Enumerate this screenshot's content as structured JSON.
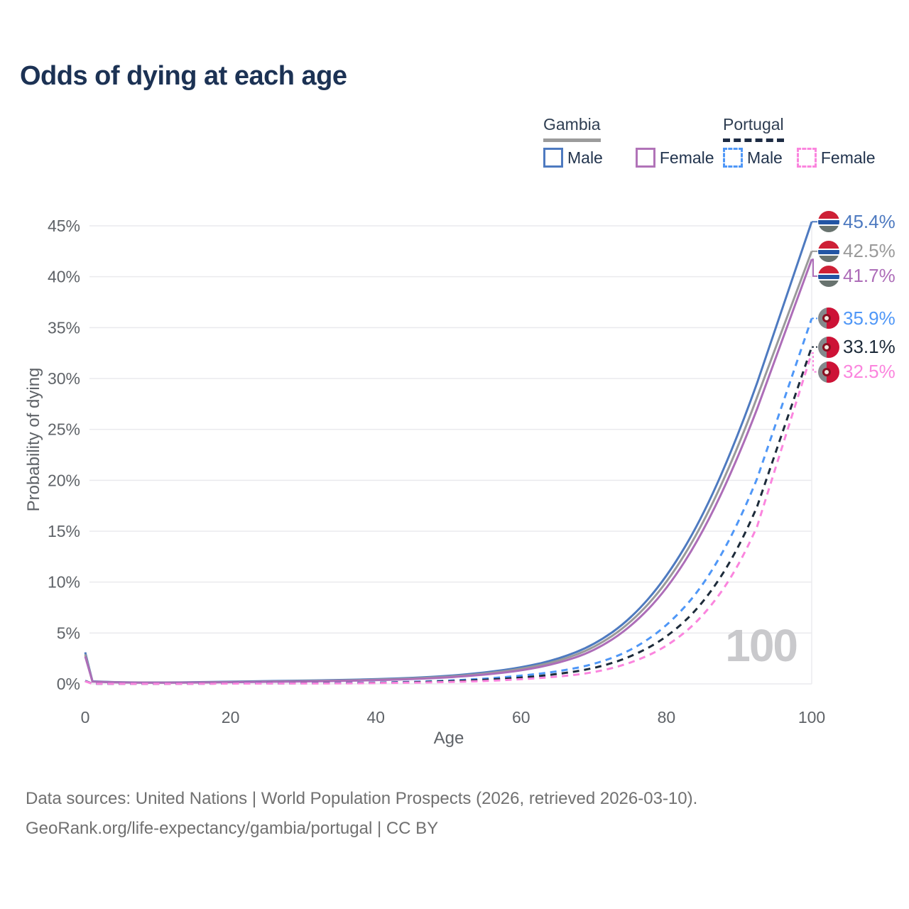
{
  "title": "Odds of dying at each age",
  "legend": {
    "groups": [
      {
        "id": "gambia",
        "label": "Gambia",
        "style": "solid",
        "underline_color": "#9b9b9b",
        "items": [
          {
            "label": "Male",
            "color": "#4e7ac0"
          },
          {
            "label": "Female",
            "color": "#b173b8"
          }
        ]
      },
      {
        "id": "portugal",
        "label": "Portugal",
        "style": "dashed",
        "underline_color": "#1e2c44",
        "items": [
          {
            "label": "Male",
            "color": "#4f97f7"
          },
          {
            "label": "Female",
            "color": "#fb85de"
          }
        ]
      }
    ]
  },
  "chart_data": {
    "type": "line",
    "title": "Odds of dying at each age",
    "xlabel": "Age",
    "ylabel": "Probability of dying",
    "xlim": [
      0,
      100
    ],
    "ylim": [
      0,
      45
    ],
    "grid": "horizontal",
    "watermark": "100",
    "x_ticks": [
      {
        "v": 0,
        "label": "0"
      },
      {
        "v": 20,
        "label": "20"
      },
      {
        "v": 40,
        "label": "40"
      },
      {
        "v": 60,
        "label": "60"
      },
      {
        "v": 80,
        "label": "80"
      },
      {
        "v": 100,
        "label": "100"
      }
    ],
    "y_ticks": [
      {
        "v": 0,
        "label": "0%"
      },
      {
        "v": 5,
        "label": "5%"
      },
      {
        "v": 10,
        "label": "10%"
      },
      {
        "v": 15,
        "label": "15%"
      },
      {
        "v": 20,
        "label": "20%"
      },
      {
        "v": 25,
        "label": "25%"
      },
      {
        "v": 30,
        "label": "30%"
      },
      {
        "v": 35,
        "label": "35%"
      },
      {
        "v": 40,
        "label": "40%"
      },
      {
        "v": 45,
        "label": "45%"
      }
    ],
    "ages": [
      0,
      1,
      5,
      10,
      15,
      20,
      25,
      30,
      35,
      40,
      45,
      50,
      55,
      60,
      65,
      70,
      75,
      80,
      85,
      90,
      95,
      100
    ],
    "series": [
      {
        "name": "Gambia Male",
        "country": "gambia",
        "sex": "male",
        "style": "solid",
        "color": "#4e7ac0",
        "end_label": "45.4%",
        "end_value": 45.4,
        "values": [
          3.1,
          0.25,
          0.15,
          0.13,
          0.16,
          0.22,
          0.27,
          0.32,
          0.38,
          0.46,
          0.58,
          0.78,
          1.1,
          1.6,
          2.4,
          3.8,
          6.3,
          10.4,
          16.4,
          24.6,
          34.6,
          45.4
        ]
      },
      {
        "name": "Gambia Both sexes",
        "country": "gambia",
        "sex": "both",
        "style": "solid",
        "color": "#9a9a9a",
        "end_label": "42.5%",
        "end_value": 42.5,
        "values": [
          2.9,
          0.23,
          0.14,
          0.12,
          0.14,
          0.19,
          0.23,
          0.28,
          0.33,
          0.41,
          0.52,
          0.7,
          1.0,
          1.45,
          2.2,
          3.5,
          5.9,
          9.8,
          15.6,
          23.4,
          33.0,
          42.5
        ]
      },
      {
        "name": "Gambia Female",
        "country": "gambia",
        "sex": "female",
        "style": "solid",
        "color": "#ad6db8",
        "end_label": "41.7%",
        "end_value": 41.7,
        "values": [
          2.7,
          0.22,
          0.13,
          0.11,
          0.13,
          0.17,
          0.2,
          0.24,
          0.29,
          0.36,
          0.46,
          0.63,
          0.9,
          1.3,
          2.0,
          3.2,
          5.5,
          9.2,
          14.8,
          22.4,
          31.7,
          41.7
        ]
      },
      {
        "name": "Portugal Male",
        "country": "portugal",
        "sex": "male",
        "style": "dashed",
        "color": "#4f97f7",
        "end_label": "35.9%",
        "end_value": 35.9,
        "values": [
          0.3,
          0.02,
          0.01,
          0.01,
          0.02,
          0.05,
          0.06,
          0.07,
          0.09,
          0.13,
          0.2,
          0.32,
          0.5,
          0.8,
          1.2,
          1.9,
          3.2,
          5.6,
          9.5,
          15.8,
          24.6,
          35.9
        ]
      },
      {
        "name": "Portugal Both sexes",
        "country": "portugal",
        "sex": "both",
        "style": "dashed",
        "color": "#1d2b3a",
        "end_label": "33.1%",
        "end_value": 33.1,
        "values": [
          0.28,
          0.02,
          0.01,
          0.01,
          0.02,
          0.04,
          0.05,
          0.06,
          0.07,
          0.1,
          0.16,
          0.25,
          0.4,
          0.6,
          0.95,
          1.5,
          2.6,
          4.5,
          7.8,
          13.3,
          21.6,
          33.1
        ]
      },
      {
        "name": "Portugal Female",
        "country": "portugal",
        "sex": "female",
        "style": "dashed",
        "color": "#fb85de",
        "end_label": "32.5%",
        "end_value": 32.5,
        "values": [
          0.25,
          0.02,
          0.01,
          0.01,
          0.01,
          0.03,
          0.04,
          0.04,
          0.05,
          0.08,
          0.12,
          0.18,
          0.28,
          0.45,
          0.7,
          1.1,
          2.0,
          3.6,
          6.5,
          11.5,
          19.5,
          32.5
        ]
      }
    ]
  },
  "footer": {
    "line1": "Data sources: United Nations | World Population Prospects (2026, retrieved 2026-03-10).",
    "line2": "GeoRank.org/life-expectancy/gambia/portugal | CC BY"
  }
}
